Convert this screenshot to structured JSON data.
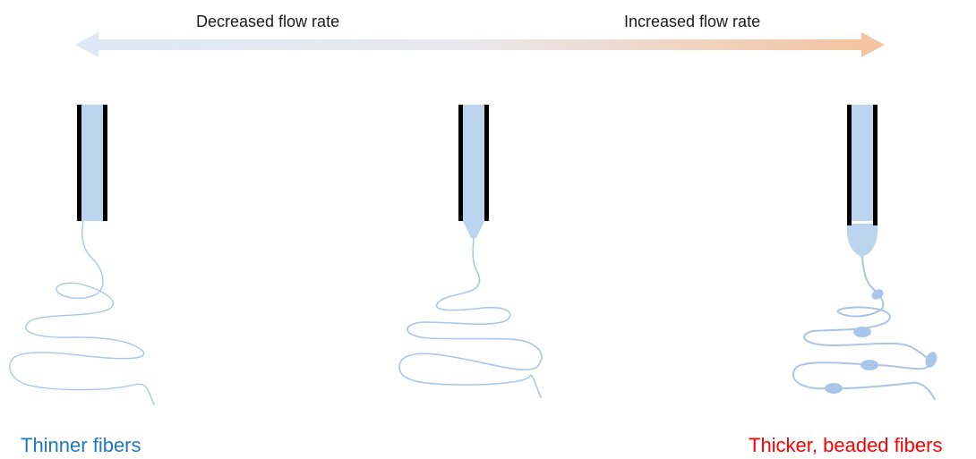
{
  "arrow": {
    "left_label": "Decreased flow rate",
    "right_label": "Increased flow rate",
    "gradient_start_color": "#dce8f5",
    "gradient_end_color": "#f4c4a0"
  },
  "captions": {
    "left": "Thinner fibers",
    "right": "Thicker, beaded fibers"
  },
  "colors": {
    "left_caption": "#1f78c1",
    "right_caption": "#ff0000",
    "fluid": "#bcd5ee",
    "fiber": "#a9c6e8",
    "needle_wall": "#000000"
  },
  "panels": [
    {
      "name": "low-flow",
      "cone": "none",
      "beads": false
    },
    {
      "name": "medium-flow",
      "cone": "taylor-cone",
      "beads": false
    },
    {
      "name": "high-flow",
      "cone": "droplet",
      "beads": true
    }
  ]
}
